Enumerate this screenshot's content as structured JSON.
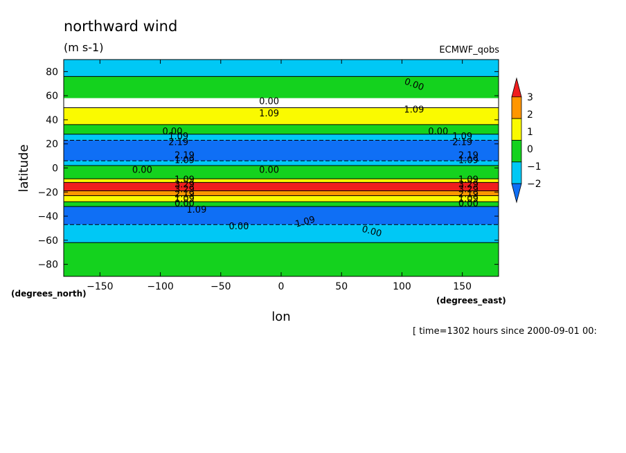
{
  "chart_data": {
    "type": "heatmap",
    "title": "northward wind",
    "units": "(m s-1)",
    "dataset": "ECMWF_qobs",
    "xlabel": "lon",
    "ylabel": "latitude",
    "xunit": "(degrees_east)",
    "yunit": "(degrees_north)",
    "time_note": "[ time=1302 hours since 2000-09-01 00:",
    "xlim": [
      -180,
      180
    ],
    "ylim": [
      -90,
      90
    ],
    "x_ticks": [
      -150,
      -100,
      -50,
      0,
      50,
      100,
      150
    ],
    "x_tick_labels": [
      "−150",
      "−100",
      "−50",
      "0",
      "50",
      "100",
      "150"
    ],
    "y_ticks": [
      -80,
      -60,
      -40,
      -20,
      0,
      20,
      40,
      60,
      80
    ],
    "y_tick_labels": [
      "−80",
      "−60",
      "−40",
      "−20",
      "0",
      "20",
      "40",
      "60",
      "80"
    ],
    "colorbar": {
      "ticks": [
        3,
        2,
        1,
        0,
        -1,
        -2
      ],
      "tick_labels": [
        "3",
        "2",
        "1",
        "0",
        "−1",
        "−2"
      ],
      "colors": [
        "#0f6ff5",
        "#00c8f5",
        "#14d21e",
        "#fafa00",
        "#ff9600",
        "#f01e1e"
      ]
    },
    "zonal_bands": [
      {
        "lat": [
          76,
          90
        ],
        "value": -0.6
      },
      {
        "lat": [
          58,
          76
        ],
        "value": 0.4
      },
      {
        "lat": [
          36,
          50
        ],
        "value": 1.2
      },
      {
        "lat": [
          28,
          36
        ],
        "value": 0.3
      },
      {
        "lat": [
          23,
          28
        ],
        "value": -0.5
      },
      {
        "lat": [
          6,
          23
        ],
        "value": -2.2
      },
      {
        "lat": [
          2,
          6
        ],
        "value": -0.5
      },
      {
        "lat": [
          -9,
          2
        ],
        "value": 0.2
      },
      {
        "lat": [
          -12,
          -9
        ],
        "value": 1.6
      },
      {
        "lat": [
          -19,
          -12
        ],
        "value": 3.3
      },
      {
        "lat": [
          -23,
          -19
        ],
        "value": 2.4
      },
      {
        "lat": [
          -28,
          -23
        ],
        "value": 1.4
      },
      {
        "lat": [
          -32,
          -28
        ],
        "value": 0.4
      },
      {
        "lat": [
          -47,
          -32
        ],
        "value": -1.4
      },
      {
        "lat": [
          -62,
          -47
        ],
        "value": -0.6
      },
      {
        "lat": [
          -90,
          -62
        ],
        "value": 0.4
      }
    ],
    "contour_labels": [
      {
        "text": "0.00",
        "lon": 110,
        "lat": 69,
        "angle": 20
      },
      {
        "text": "0.00",
        "lon": -10,
        "lat": 55,
        "angle": 0
      },
      {
        "text": "1.09",
        "lon": -10,
        "lat": 45,
        "angle": 0
      },
      {
        "text": "1.09",
        "lon": 110,
        "lat": 48,
        "angle": 0
      },
      {
        "text": "0.00",
        "lon": -90,
        "lat": 30,
        "angle": 0
      },
      {
        "text": "1.09",
        "lon": -85,
        "lat": 26,
        "angle": 0
      },
      {
        "text": "2.19",
        "lon": -85,
        "lat": 21,
        "angle": 0
      },
      {
        "text": "0.00",
        "lon": 130,
        "lat": 30,
        "angle": 0
      },
      {
        "text": "1.09",
        "lon": 150,
        "lat": 26,
        "angle": 0
      },
      {
        "text": "2.19",
        "lon": 150,
        "lat": 21,
        "angle": 0
      },
      {
        "text": "2.19",
        "lon": -80,
        "lat": 10,
        "angle": 0
      },
      {
        "text": "1.09",
        "lon": -80,
        "lat": 6,
        "angle": 0
      },
      {
        "text": "2.19",
        "lon": 155,
        "lat": 10,
        "angle": 0
      },
      {
        "text": "1.09",
        "lon": 155,
        "lat": 6,
        "angle": 0
      },
      {
        "text": "0.00",
        "lon": -115,
        "lat": -2,
        "angle": 0
      },
      {
        "text": "0.00",
        "lon": -10,
        "lat": -2,
        "angle": 0
      },
      {
        "text": "1.09",
        "lon": -80,
        "lat": -10,
        "angle": 0
      },
      {
        "text": "3.29",
        "lon": -80,
        "lat": -14,
        "angle": 0
      },
      {
        "text": "3.29",
        "lon": -80,
        "lat": -18,
        "angle": 0
      },
      {
        "text": "2.19",
        "lon": -80,
        "lat": -22,
        "angle": 0
      },
      {
        "text": "1.09",
        "lon": -80,
        "lat": -26,
        "angle": 0
      },
      {
        "text": "0.00",
        "lon": -80,
        "lat": -30,
        "angle": 0
      },
      {
        "text": "1.09",
        "lon": -70,
        "lat": -35,
        "angle": 0
      },
      {
        "text": "1.09",
        "lon": 155,
        "lat": -10,
        "angle": 0
      },
      {
        "text": "3.29",
        "lon": 155,
        "lat": -14,
        "angle": 0
      },
      {
        "text": "3.29",
        "lon": 155,
        "lat": -18,
        "angle": 0
      },
      {
        "text": "2.19",
        "lon": 155,
        "lat": -22,
        "angle": 0
      },
      {
        "text": "1.09",
        "lon": 155,
        "lat": -26,
        "angle": 0
      },
      {
        "text": "0.00",
        "lon": 155,
        "lat": -30,
        "angle": 0
      },
      {
        "text": "1.09",
        "lon": 20,
        "lat": -45,
        "angle": -15
      },
      {
        "text": "0.00",
        "lon": -35,
        "lat": -49,
        "angle": 0
      },
      {
        "text": "0.00",
        "lon": 75,
        "lat": -53,
        "angle": 15
      }
    ]
  }
}
